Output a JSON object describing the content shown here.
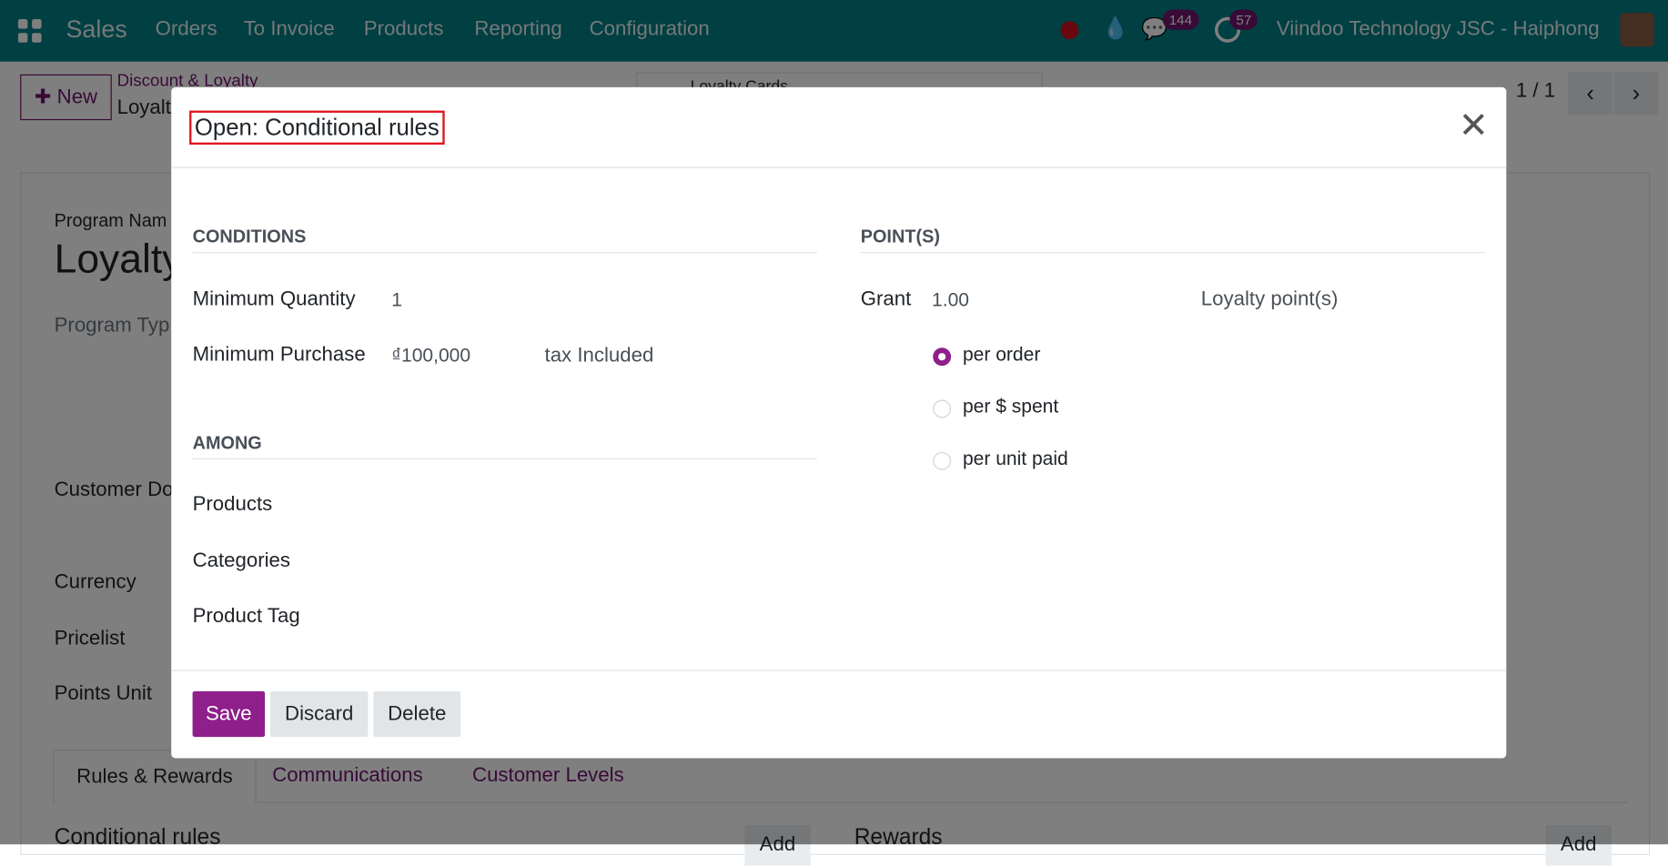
{
  "navbar": {
    "app": "Sales",
    "menu": [
      "Orders",
      "To Invoice",
      "Products",
      "Reporting",
      "Configuration"
    ],
    "messages_count": "144",
    "activities_count": "57",
    "company": "Viindoo Technology JSC - Haiphong",
    "color": "#017e84"
  },
  "control_panel": {
    "new_label": "New",
    "breadcrumb_parent": "Discount & Loyalty",
    "breadcrumb_current": "Loyalt",
    "smart_button": "Loyalty Cards",
    "pager": "1 / 1"
  },
  "form": {
    "program_name_label": "Program Nam",
    "program_name": "Loyalty",
    "program_type_label": "Program Typ",
    "customer_label": "Customer Do",
    "currency_label": "Currency",
    "pricelist_label": "Pricelist",
    "points_unit_label": "Points Unit",
    "tabs": [
      "Rules & Rewards",
      "Communications",
      "Customer Levels"
    ],
    "conditional_rules": "Conditional rules",
    "rewards": "Rewards",
    "add": "Add"
  },
  "modal": {
    "title": "Open: Conditional rules",
    "conditions": {
      "heading": "CONDITIONS",
      "min_qty_label": "Minimum Quantity",
      "min_qty": "1",
      "min_purchase_label": "Minimum Purchase",
      "min_purchase": "₫100,000",
      "tax_mode": "tax Included"
    },
    "among": {
      "heading": "AMONG",
      "products": "Products",
      "categories": "Categories",
      "product_tag": "Product Tag"
    },
    "points": {
      "heading": "POINT(S)",
      "grant_label": "Grant",
      "grant": "1.00",
      "unit": "Loyalty point(s)",
      "modes": [
        {
          "label": "per order",
          "selected": true
        },
        {
          "label": "per $ spent",
          "selected": false
        },
        {
          "label": "per unit paid",
          "selected": false
        }
      ]
    },
    "buttons": {
      "save": "Save",
      "discard": "Discard",
      "delete": "Delete"
    },
    "accent": "#8f1f8a"
  }
}
